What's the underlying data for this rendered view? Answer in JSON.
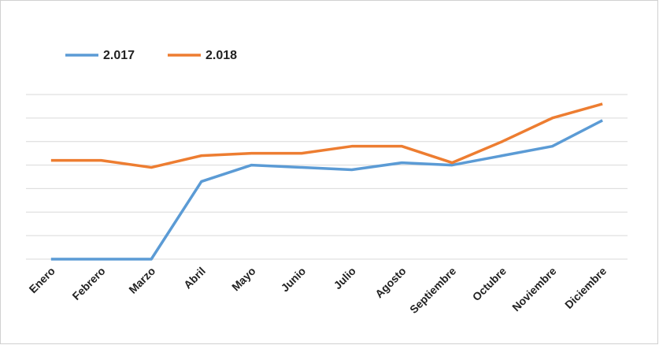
{
  "chart_data": {
    "type": "line",
    "categories": [
      "Enero",
      "Febrero",
      "Marzo",
      "Abril",
      "Mayo",
      "Junio",
      "Julio",
      "Agosto",
      "Septiembre",
      "Octubre",
      "Noviembre",
      "Diciembre"
    ],
    "series": [
      {
        "name": "2.017",
        "color": "#5b9bd5",
        "values": [
          0,
          0,
          0,
          3.3,
          4.0,
          3.9,
          3.8,
          4.1,
          4.0,
          4.4,
          4.8,
          5.9
        ]
      },
      {
        "name": "2.018",
        "color": "#ed7d31",
        "values": [
          4.2,
          4.2,
          3.9,
          4.4,
          4.5,
          4.5,
          4.8,
          4.8,
          4.1,
          5.0,
          6.0,
          6.6
        ]
      }
    ],
    "ylim": [
      0,
      7
    ],
    "yticks": [
      0,
      1,
      2,
      3,
      4,
      5,
      6,
      7
    ],
    "grid": true
  }
}
